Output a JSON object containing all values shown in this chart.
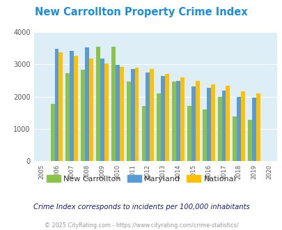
{
  "title": "New Carrollton Property Crime Index",
  "years": [
    2005,
    2006,
    2007,
    2008,
    2009,
    2010,
    2011,
    2012,
    2013,
    2014,
    2015,
    2016,
    2017,
    2018,
    2019,
    2020
  ],
  "new_carrollton": [
    null,
    1780,
    2730,
    2830,
    3540,
    3540,
    2470,
    1710,
    2110,
    2460,
    1720,
    1610,
    2000,
    1390,
    1270,
    null
  ],
  "maryland": [
    null,
    3490,
    3430,
    3530,
    3180,
    2980,
    2860,
    2740,
    2630,
    2490,
    2310,
    2270,
    2190,
    2000,
    1960,
    null
  ],
  "national": [
    null,
    3370,
    3270,
    3190,
    3020,
    2930,
    2900,
    2860,
    2710,
    2590,
    2490,
    2390,
    2330,
    2170,
    2100,
    null
  ],
  "colors": {
    "new_carrollton": "#8bc34a",
    "maryland": "#5b9bd5",
    "national": "#ffc000"
  },
  "bg_color": "#ddeef6",
  "ylim": [
    0,
    4000
  ],
  "yticks": [
    0,
    1000,
    2000,
    3000,
    4000
  ],
  "subtitle": "Crime Index corresponds to incidents per 100,000 inhabitants",
  "footer": "© 2025 CityRating.com - https://www.cityrating.com/crime-statistics/",
  "title_color": "#1f8dd6",
  "subtitle_color": "#1a1a6e",
  "footer_color": "#999999",
  "legend_text_color": "#333333"
}
